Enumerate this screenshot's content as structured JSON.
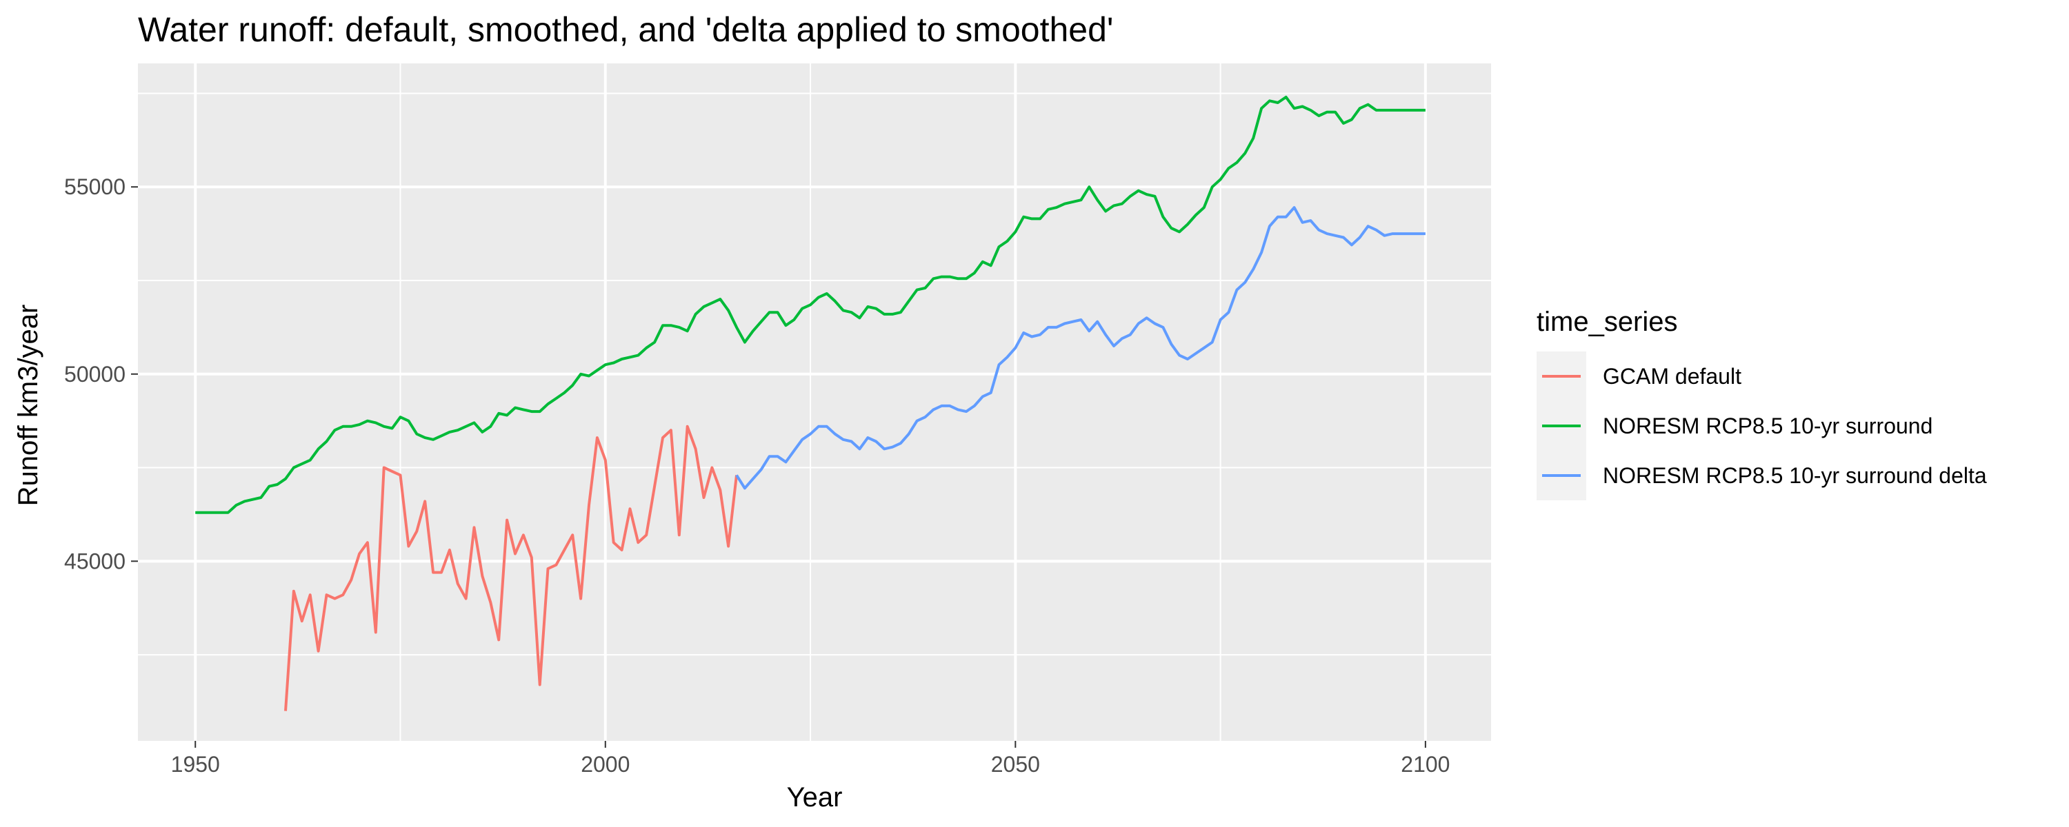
{
  "chart_data": {
    "type": "line",
    "title": "Water runoff: default, smoothed, and 'delta applied to smoothed'",
    "xlabel": "Year",
    "ylabel": "Runoff km3/year",
    "xlim": [
      1943,
      2108
    ],
    "ylim": [
      40200,
      58300
    ],
    "x_ticks": [
      1950,
      2000,
      2050,
      2100
    ],
    "x_tick_labels": [
      "1950",
      "2000",
      "2050",
      "2100"
    ],
    "y_ticks": [
      45000,
      50000,
      55000
    ],
    "y_tick_labels": [
      "45000",
      "50000",
      "55000"
    ],
    "y_minor_ticks": [
      42500,
      47500,
      52500,
      57500
    ],
    "x_minor_ticks": [
      1975,
      2025,
      2075
    ],
    "grid": true,
    "legend": {
      "title": "time_series",
      "placement": "right"
    },
    "series": [
      {
        "name": "GCAM default",
        "color": "#F8766D",
        "points": [
          [
            1961,
            41000
          ],
          [
            1962,
            44200
          ],
          [
            1963,
            43400
          ],
          [
            1964,
            44100
          ],
          [
            1965,
            42600
          ],
          [
            1966,
            44100
          ],
          [
            1967,
            44000
          ],
          [
            1968,
            44100
          ],
          [
            1969,
            44500
          ],
          [
            1970,
            45200
          ],
          [
            1971,
            45500
          ],
          [
            1972,
            43100
          ],
          [
            1973,
            47500
          ],
          [
            1974,
            47400
          ],
          [
            1975,
            47300
          ],
          [
            1976,
            45400
          ],
          [
            1977,
            45800
          ],
          [
            1978,
            46600
          ],
          [
            1979,
            44700
          ],
          [
            1980,
            44700
          ],
          [
            1981,
            45300
          ],
          [
            1982,
            44400
          ],
          [
            1983,
            44000
          ],
          [
            1984,
            45900
          ],
          [
            1985,
            44600
          ],
          [
            1986,
            43900
          ],
          [
            1987,
            42900
          ],
          [
            1988,
            46100
          ],
          [
            1989,
            45200
          ],
          [
            1990,
            45700
          ],
          [
            1991,
            45100
          ],
          [
            1992,
            41700
          ],
          [
            1993,
            44800
          ],
          [
            1994,
            44900
          ],
          [
            1995,
            45300
          ],
          [
            1996,
            45700
          ],
          [
            1997,
            44000
          ],
          [
            1998,
            46500
          ],
          [
            1999,
            48300
          ],
          [
            2000,
            47700
          ],
          [
            2001,
            45500
          ],
          [
            2002,
            45300
          ],
          [
            2003,
            46400
          ],
          [
            2004,
            45500
          ],
          [
            2005,
            45700
          ],
          [
            2006,
            47000
          ],
          [
            2007,
            48300
          ],
          [
            2008,
            48500
          ],
          [
            2009,
            45700
          ],
          [
            2010,
            48600
          ],
          [
            2011,
            48000
          ],
          [
            2012,
            46700
          ],
          [
            2013,
            47500
          ],
          [
            2014,
            46900
          ],
          [
            2015,
            45400
          ],
          [
            2016,
            47300
          ]
        ]
      },
      {
        "name": "NORESM RCP8.5 10-yr surround",
        "color": "#00BA38",
        "points": [
          [
            1950,
            46300
          ],
          [
            1951,
            46300
          ],
          [
            1952,
            46300
          ],
          [
            1953,
            46300
          ],
          [
            1954,
            46300
          ],
          [
            1955,
            46500
          ],
          [
            1956,
            46600
          ],
          [
            1957,
            46650
          ],
          [
            1958,
            46700
          ],
          [
            1959,
            47000
          ],
          [
            1960,
            47050
          ],
          [
            1961,
            47200
          ],
          [
            1962,
            47500
          ],
          [
            1963,
            47600
          ],
          [
            1964,
            47700
          ],
          [
            1965,
            48000
          ],
          [
            1966,
            48200
          ],
          [
            1967,
            48500
          ],
          [
            1968,
            48600
          ],
          [
            1969,
            48600
          ],
          [
            1970,
            48650
          ],
          [
            1971,
            48750
          ],
          [
            1972,
            48700
          ],
          [
            1973,
            48600
          ],
          [
            1974,
            48550
          ],
          [
            1975,
            48850
          ],
          [
            1976,
            48750
          ],
          [
            1977,
            48400
          ],
          [
            1978,
            48300
          ],
          [
            1979,
            48250
          ],
          [
            1980,
            48350
          ],
          [
            1981,
            48450
          ],
          [
            1982,
            48500
          ],
          [
            1983,
            48600
          ],
          [
            1984,
            48700
          ],
          [
            1985,
            48450
          ],
          [
            1986,
            48600
          ],
          [
            1987,
            48950
          ],
          [
            1988,
            48900
          ],
          [
            1989,
            49100
          ],
          [
            1990,
            49050
          ],
          [
            1991,
            49000
          ],
          [
            1992,
            49000
          ],
          [
            1993,
            49200
          ],
          [
            1994,
            49350
          ],
          [
            1995,
            49500
          ],
          [
            1996,
            49700
          ],
          [
            1997,
            50000
          ],
          [
            1998,
            49950
          ],
          [
            1999,
            50100
          ],
          [
            2000,
            50250
          ],
          [
            2001,
            50300
          ],
          [
            2002,
            50400
          ],
          [
            2003,
            50450
          ],
          [
            2004,
            50500
          ],
          [
            2005,
            50700
          ],
          [
            2006,
            50850
          ],
          [
            2007,
            51300
          ],
          [
            2008,
            51300
          ],
          [
            2009,
            51250
          ],
          [
            2010,
            51150
          ],
          [
            2011,
            51600
          ],
          [
            2012,
            51800
          ],
          [
            2013,
            51900
          ],
          [
            2014,
            52000
          ],
          [
            2015,
            51700
          ],
          [
            2016,
            51250
          ],
          [
            2017,
            50850
          ],
          [
            2018,
            51150
          ],
          [
            2019,
            51400
          ],
          [
            2020,
            51650
          ],
          [
            2021,
            51650
          ],
          [
            2022,
            51300
          ],
          [
            2023,
            51450
          ],
          [
            2024,
            51750
          ],
          [
            2025,
            51850
          ],
          [
            2026,
            52050
          ],
          [
            2027,
            52150
          ],
          [
            2028,
            51950
          ],
          [
            2029,
            51700
          ],
          [
            2030,
            51650
          ],
          [
            2031,
            51500
          ],
          [
            2032,
            51800
          ],
          [
            2033,
            51750
          ],
          [
            2034,
            51600
          ],
          [
            2035,
            51600
          ],
          [
            2036,
            51650
          ],
          [
            2037,
            51950
          ],
          [
            2038,
            52250
          ],
          [
            2039,
            52300
          ],
          [
            2040,
            52550
          ],
          [
            2041,
            52600
          ],
          [
            2042,
            52600
          ],
          [
            2043,
            52550
          ],
          [
            2044,
            52550
          ],
          [
            2045,
            52700
          ],
          [
            2046,
            53000
          ],
          [
            2047,
            52900
          ],
          [
            2048,
            53400
          ],
          [
            2049,
            53550
          ],
          [
            2050,
            53800
          ],
          [
            2051,
            54200
          ],
          [
            2052,
            54150
          ],
          [
            2053,
            54150
          ],
          [
            2054,
            54400
          ],
          [
            2055,
            54450
          ],
          [
            2056,
            54550
          ],
          [
            2057,
            54600
          ],
          [
            2058,
            54650
          ],
          [
            2059,
            55000
          ],
          [
            2060,
            54650
          ],
          [
            2061,
            54350
          ],
          [
            2062,
            54500
          ],
          [
            2063,
            54550
          ],
          [
            2064,
            54750
          ],
          [
            2065,
            54900
          ],
          [
            2066,
            54800
          ],
          [
            2067,
            54750
          ],
          [
            2068,
            54200
          ],
          [
            2069,
            53900
          ],
          [
            2070,
            53800
          ],
          [
            2071,
            54000
          ],
          [
            2072,
            54250
          ],
          [
            2073,
            54450
          ],
          [
            2074,
            55000
          ],
          [
            2075,
            55200
          ],
          [
            2076,
            55500
          ],
          [
            2077,
            55650
          ],
          [
            2078,
            55900
          ],
          [
            2079,
            56300
          ],
          [
            2080,
            57100
          ],
          [
            2081,
            57300
          ],
          [
            2082,
            57250
          ],
          [
            2083,
            57400
          ],
          [
            2084,
            57100
          ],
          [
            2085,
            57150
          ],
          [
            2086,
            57050
          ],
          [
            2087,
            56900
          ],
          [
            2088,
            57000
          ],
          [
            2089,
            57000
          ],
          [
            2090,
            56700
          ],
          [
            2091,
            56800
          ],
          [
            2092,
            57100
          ],
          [
            2093,
            57200
          ],
          [
            2094,
            57050
          ],
          [
            2095,
            57050
          ],
          [
            2096,
            57050
          ],
          [
            2097,
            57050
          ],
          [
            2098,
            57050
          ],
          [
            2099,
            57050
          ],
          [
            2100,
            57050
          ]
        ]
      },
      {
        "name": "NORESM RCP8.5 10-yr surround delta",
        "color": "#619CFF",
        "points": [
          [
            2016,
            47300
          ],
          [
            2017,
            46950
          ],
          [
            2018,
            47200
          ],
          [
            2019,
            47450
          ],
          [
            2020,
            47800
          ],
          [
            2021,
            47800
          ],
          [
            2022,
            47650
          ],
          [
            2023,
            47950
          ],
          [
            2024,
            48250
          ],
          [
            2025,
            48400
          ],
          [
            2026,
            48600
          ],
          [
            2027,
            48600
          ],
          [
            2028,
            48400
          ],
          [
            2029,
            48250
          ],
          [
            2030,
            48200
          ],
          [
            2031,
            48000
          ],
          [
            2032,
            48300
          ],
          [
            2033,
            48200
          ],
          [
            2034,
            48000
          ],
          [
            2035,
            48050
          ],
          [
            2036,
            48150
          ],
          [
            2037,
            48400
          ],
          [
            2038,
            48750
          ],
          [
            2039,
            48850
          ],
          [
            2040,
            49050
          ],
          [
            2041,
            49150
          ],
          [
            2042,
            49150
          ],
          [
            2043,
            49050
          ],
          [
            2044,
            49000
          ],
          [
            2045,
            49150
          ],
          [
            2046,
            49400
          ],
          [
            2047,
            49500
          ],
          [
            2048,
            50250
          ],
          [
            2049,
            50450
          ],
          [
            2050,
            50700
          ],
          [
            2051,
            51100
          ],
          [
            2052,
            51000
          ],
          [
            2053,
            51050
          ],
          [
            2054,
            51250
          ],
          [
            2055,
            51250
          ],
          [
            2056,
            51350
          ],
          [
            2057,
            51400
          ],
          [
            2058,
            51450
          ],
          [
            2059,
            51150
          ],
          [
            2060,
            51400
          ],
          [
            2061,
            51050
          ],
          [
            2062,
            50750
          ],
          [
            2063,
            50950
          ],
          [
            2064,
            51050
          ],
          [
            2065,
            51350
          ],
          [
            2066,
            51500
          ],
          [
            2067,
            51350
          ],
          [
            2068,
            51250
          ],
          [
            2069,
            50800
          ],
          [
            2070,
            50500
          ],
          [
            2071,
            50400
          ],
          [
            2072,
            50550
          ],
          [
            2073,
            50700
          ],
          [
            2074,
            50850
          ],
          [
            2075,
            51450
          ],
          [
            2076,
            51650
          ],
          [
            2077,
            52250
          ],
          [
            2078,
            52450
          ],
          [
            2079,
            52800
          ],
          [
            2080,
            53250
          ],
          [
            2081,
            53950
          ],
          [
            2082,
            54200
          ],
          [
            2083,
            54200
          ],
          [
            2084,
            54450
          ],
          [
            2085,
            54050
          ],
          [
            2086,
            54100
          ],
          [
            2087,
            53850
          ],
          [
            2088,
            53750
          ],
          [
            2089,
            53700
          ],
          [
            2090,
            53650
          ],
          [
            2091,
            53450
          ],
          [
            2092,
            53650
          ],
          [
            2093,
            53950
          ],
          [
            2094,
            53850
          ],
          [
            2095,
            53700
          ],
          [
            2096,
            53750
          ],
          [
            2097,
            53750
          ],
          [
            2098,
            53750
          ],
          [
            2099,
            53750
          ],
          [
            2100,
            53750
          ]
        ]
      }
    ]
  }
}
